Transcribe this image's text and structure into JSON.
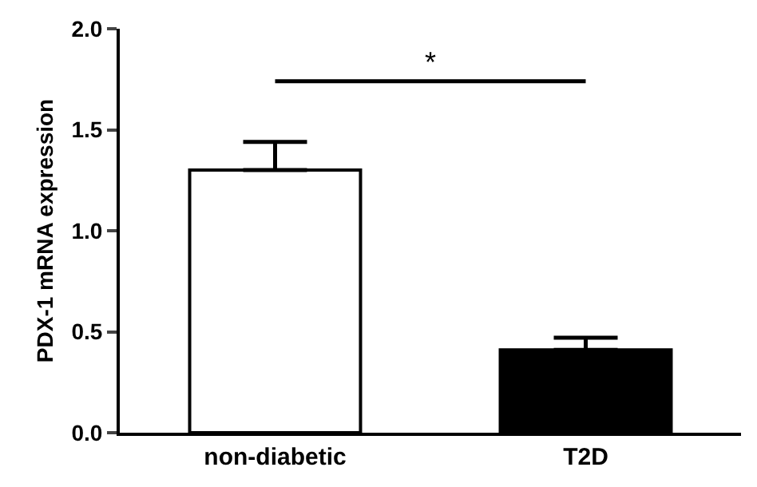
{
  "chart_data": {
    "type": "bar",
    "ylabel": "PDX-1 mRNA expression",
    "categories": [
      "non-diabetic",
      "T2D"
    ],
    "values": [
      1.3,
      0.41
    ],
    "colors": [
      "#ffffff",
      "#000000"
    ],
    "errors": [
      [
        1.3,
        1.44
      ],
      [
        0.41,
        0.47
      ]
    ],
    "ylim": [
      0,
      2.0
    ],
    "yticks": [
      {
        "value": 0,
        "label": "0.0"
      },
      {
        "value": 0.5,
        "label": "0.5"
      },
      {
        "value": 1.0,
        "label": "1.0"
      },
      {
        "value": 1.5,
        "label": "1.5"
      },
      {
        "value": 2.0,
        "label": "2.0"
      }
    ],
    "annotations": [
      "*"
    ],
    "legend": false
  }
}
